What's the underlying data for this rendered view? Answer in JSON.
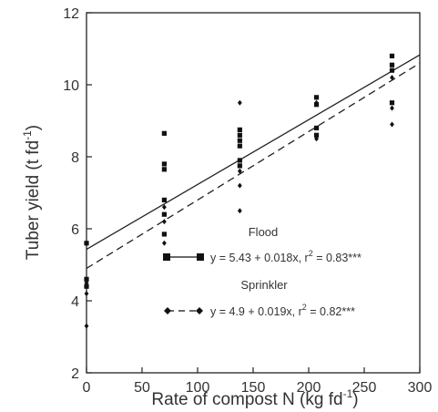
{
  "chart_data": {
    "type": "scatter",
    "xlabel": "Rate of compost N (kg fd",
    "xlabel_sup": "-1",
    "xlabel_end": ")",
    "ylabel": "Tuber yield (t fd",
    "ylabel_sup": "-1",
    "ylabel_end": ")",
    "xlim": [
      0,
      300
    ],
    "ylim": [
      2,
      12
    ],
    "x_ticks": [
      0,
      50,
      100,
      150,
      200,
      250,
      300
    ],
    "y_ticks": [
      2,
      4,
      6,
      8,
      10,
      12
    ],
    "grid": false,
    "legend_placement": "lower-right",
    "series": [
      {
        "name": "Flood",
        "marker": "square",
        "line_style": "solid",
        "equation_text": "y = 5.43 + 0.018x, r",
        "r2_sup": "2",
        "r2_value": " = 0.83***",
        "intercept": 5.43,
        "slope": 0.018,
        "points": [
          {
            "x": 0,
            "y": 5.6
          },
          {
            "x": 0,
            "y": 4.6
          },
          {
            "x": 0,
            "y": 4.4
          },
          {
            "x": 70,
            "y": 8.65
          },
          {
            "x": 70,
            "y": 7.8
          },
          {
            "x": 70,
            "y": 7.65
          },
          {
            "x": 70,
            "y": 6.8
          },
          {
            "x": 70,
            "y": 6.4
          },
          {
            "x": 70,
            "y": 5.85
          },
          {
            "x": 138,
            "y": 8.75
          },
          {
            "x": 138,
            "y": 8.6
          },
          {
            "x": 138,
            "y": 8.45
          },
          {
            "x": 138,
            "y": 8.3
          },
          {
            "x": 138,
            "y": 7.9
          },
          {
            "x": 138,
            "y": 7.75
          },
          {
            "x": 207,
            "y": 9.65
          },
          {
            "x": 207,
            "y": 9.45
          },
          {
            "x": 207,
            "y": 8.8
          },
          {
            "x": 207,
            "y": 8.6
          },
          {
            "x": 275,
            "y": 10.8
          },
          {
            "x": 275,
            "y": 10.55
          },
          {
            "x": 275,
            "y": 10.4
          },
          {
            "x": 275,
            "y": 9.5
          }
        ]
      },
      {
        "name": "Sprinkler",
        "marker": "diamond",
        "line_style": "dashed",
        "equation_text": "y = 4.9 + 0.019x, r",
        "r2_sup": "2",
        "r2_value": " = 0.82***",
        "intercept": 4.9,
        "slope": 0.019,
        "points": [
          {
            "x": 0,
            "y": 4.5
          },
          {
            "x": 0,
            "y": 4.2
          },
          {
            "x": 0,
            "y": 3.3
          },
          {
            "x": 70,
            "y": 6.6
          },
          {
            "x": 70,
            "y": 6.2
          },
          {
            "x": 70,
            "y": 5.6
          },
          {
            "x": 138,
            "y": 9.5
          },
          {
            "x": 138,
            "y": 7.6
          },
          {
            "x": 138,
            "y": 7.2
          },
          {
            "x": 138,
            "y": 6.5
          },
          {
            "x": 207,
            "y": 9.5
          },
          {
            "x": 207,
            "y": 8.5
          },
          {
            "x": 275,
            "y": 10.2
          },
          {
            "x": 275,
            "y": 9.35
          },
          {
            "x": 275,
            "y": 8.9
          }
        ]
      }
    ]
  }
}
